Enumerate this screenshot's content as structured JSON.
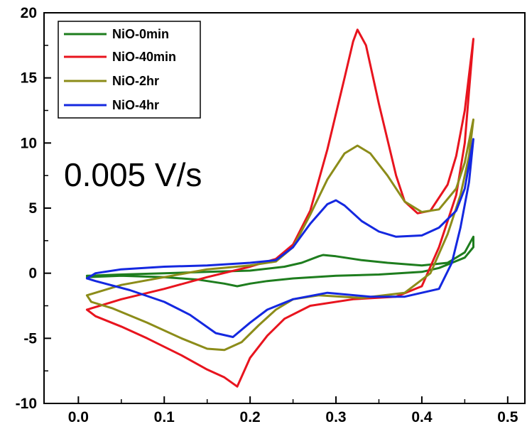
{
  "chart_data": {
    "type": "line",
    "title": "",
    "xlabel": "",
    "ylabel": "",
    "xlim": [
      -0.04,
      0.52
    ],
    "ylim": [
      -10,
      20
    ],
    "x_ticks": [
      "0.0",
      "0.1",
      "0.2",
      "0.3",
      "0.4",
      "0.5"
    ],
    "y_ticks": [
      "-10",
      "-5",
      "0",
      "5",
      "10",
      "15",
      "20"
    ],
    "annotation": "0.005 V/s",
    "legend_position": "top-left",
    "grid": false,
    "series": [
      {
        "name": "NiO-0min",
        "color": "#1e7d1e",
        "points": [
          [
            0.01,
            -0.2
          ],
          [
            0.05,
            -0.1
          ],
          [
            0.1,
            0
          ],
          [
            0.15,
            0.1
          ],
          [
            0.2,
            0.2
          ],
          [
            0.24,
            0.5
          ],
          [
            0.26,
            0.8
          ],
          [
            0.28,
            1.3
          ],
          [
            0.285,
            1.4
          ],
          [
            0.3,
            1.3
          ],
          [
            0.33,
            1.0
          ],
          [
            0.36,
            0.8
          ],
          [
            0.4,
            0.6
          ],
          [
            0.43,
            0.8
          ],
          [
            0.45,
            1.6
          ],
          [
            0.46,
            2.8
          ],
          [
            0.46,
            2.0
          ],
          [
            0.45,
            1.2
          ],
          [
            0.42,
            0.4
          ],
          [
            0.4,
            0.1
          ],
          [
            0.35,
            -0.1
          ],
          [
            0.3,
            -0.2
          ],
          [
            0.25,
            -0.4
          ],
          [
            0.22,
            -0.6
          ],
          [
            0.2,
            -0.8
          ],
          [
            0.185,
            -1.0
          ],
          [
            0.17,
            -0.8
          ],
          [
            0.14,
            -0.5
          ],
          [
            0.1,
            -0.3
          ],
          [
            0.05,
            -0.2
          ],
          [
            0.01,
            -0.3
          ]
        ]
      },
      {
        "name": "NiO-40min",
        "color": "#e8141e",
        "points": [
          [
            0.01,
            -2.8
          ],
          [
            0.03,
            -2.4
          ],
          [
            0.05,
            -2.0
          ],
          [
            0.1,
            -1.2
          ],
          [
            0.15,
            -0.3
          ],
          [
            0.2,
            0.5
          ],
          [
            0.23,
            1.1
          ],
          [
            0.25,
            2.2
          ],
          [
            0.27,
            4.8
          ],
          [
            0.29,
            9.5
          ],
          [
            0.31,
            15.0
          ],
          [
            0.32,
            17.8
          ],
          [
            0.325,
            18.7
          ],
          [
            0.335,
            17.5
          ],
          [
            0.35,
            13.0
          ],
          [
            0.37,
            7.5
          ],
          [
            0.38,
            5.5
          ],
          [
            0.395,
            4.6
          ],
          [
            0.41,
            4.8
          ],
          [
            0.43,
            6.8
          ],
          [
            0.44,
            9.0
          ],
          [
            0.45,
            12.5
          ],
          [
            0.46,
            18.0
          ],
          [
            0.455,
            14.0
          ],
          [
            0.45,
            10.0
          ],
          [
            0.44,
            6.0
          ],
          [
            0.42,
            2.0
          ],
          [
            0.4,
            -1.0
          ],
          [
            0.37,
            -1.8
          ],
          [
            0.32,
            -2.0
          ],
          [
            0.27,
            -2.5
          ],
          [
            0.24,
            -3.5
          ],
          [
            0.22,
            -4.8
          ],
          [
            0.2,
            -6.5
          ],
          [
            0.185,
            -8.7
          ],
          [
            0.17,
            -8.0
          ],
          [
            0.15,
            -7.4
          ],
          [
            0.12,
            -6.3
          ],
          [
            0.08,
            -5.0
          ],
          [
            0.05,
            -4.1
          ],
          [
            0.02,
            -3.3
          ],
          [
            0.01,
            -2.8
          ]
        ]
      },
      {
        "name": "NiO-2hr",
        "color": "#8c8c19",
        "points": [
          [
            0.01,
            -1.7
          ],
          [
            0.05,
            -0.9
          ],
          [
            0.1,
            -0.3
          ],
          [
            0.15,
            0.3
          ],
          [
            0.2,
            0.6
          ],
          [
            0.23,
            0.9
          ],
          [
            0.25,
            2.0
          ],
          [
            0.27,
            4.5
          ],
          [
            0.29,
            7.2
          ],
          [
            0.31,
            9.2
          ],
          [
            0.325,
            9.8
          ],
          [
            0.34,
            9.2
          ],
          [
            0.36,
            7.5
          ],
          [
            0.38,
            5.5
          ],
          [
            0.4,
            4.7
          ],
          [
            0.42,
            4.9
          ],
          [
            0.44,
            6.5
          ],
          [
            0.45,
            8.5
          ],
          [
            0.46,
            11.8
          ],
          [
            0.455,
            9.0
          ],
          [
            0.445,
            6.0
          ],
          [
            0.43,
            3.0
          ],
          [
            0.41,
            0
          ],
          [
            0.38,
            -1.5
          ],
          [
            0.33,
            -1.9
          ],
          [
            0.28,
            -1.7
          ],
          [
            0.25,
            -2.0
          ],
          [
            0.23,
            -2.8
          ],
          [
            0.21,
            -4.0
          ],
          [
            0.19,
            -5.3
          ],
          [
            0.17,
            -5.9
          ],
          [
            0.15,
            -5.8
          ],
          [
            0.12,
            -5.0
          ],
          [
            0.08,
            -3.8
          ],
          [
            0.04,
            -2.7
          ],
          [
            0.015,
            -2.2
          ],
          [
            0.01,
            -1.7
          ]
        ]
      },
      {
        "name": "NiO-4hr",
        "color": "#1428e0",
        "points": [
          [
            0.01,
            -0.4
          ],
          [
            0.02,
            0
          ],
          [
            0.05,
            0.3
          ],
          [
            0.1,
            0.5
          ],
          [
            0.15,
            0.6
          ],
          [
            0.2,
            0.8
          ],
          [
            0.23,
            1.0
          ],
          [
            0.25,
            2.0
          ],
          [
            0.27,
            3.8
          ],
          [
            0.29,
            5.3
          ],
          [
            0.3,
            5.6
          ],
          [
            0.31,
            5.2
          ],
          [
            0.33,
            4.0
          ],
          [
            0.35,
            3.2
          ],
          [
            0.37,
            2.8
          ],
          [
            0.4,
            2.9
          ],
          [
            0.42,
            3.5
          ],
          [
            0.44,
            4.8
          ],
          [
            0.45,
            6.5
          ],
          [
            0.46,
            10.3
          ],
          [
            0.455,
            7.0
          ],
          [
            0.445,
            3.5
          ],
          [
            0.435,
            0.8
          ],
          [
            0.42,
            -1.2
          ],
          [
            0.38,
            -1.8
          ],
          [
            0.34,
            -1.8
          ],
          [
            0.29,
            -1.5
          ],
          [
            0.25,
            -2.0
          ],
          [
            0.22,
            -2.8
          ],
          [
            0.2,
            -3.8
          ],
          [
            0.18,
            -4.9
          ],
          [
            0.16,
            -4.6
          ],
          [
            0.13,
            -3.2
          ],
          [
            0.1,
            -2.2
          ],
          [
            0.06,
            -1.3
          ],
          [
            0.02,
            -0.6
          ],
          [
            0.01,
            -0.4
          ]
        ]
      }
    ]
  }
}
